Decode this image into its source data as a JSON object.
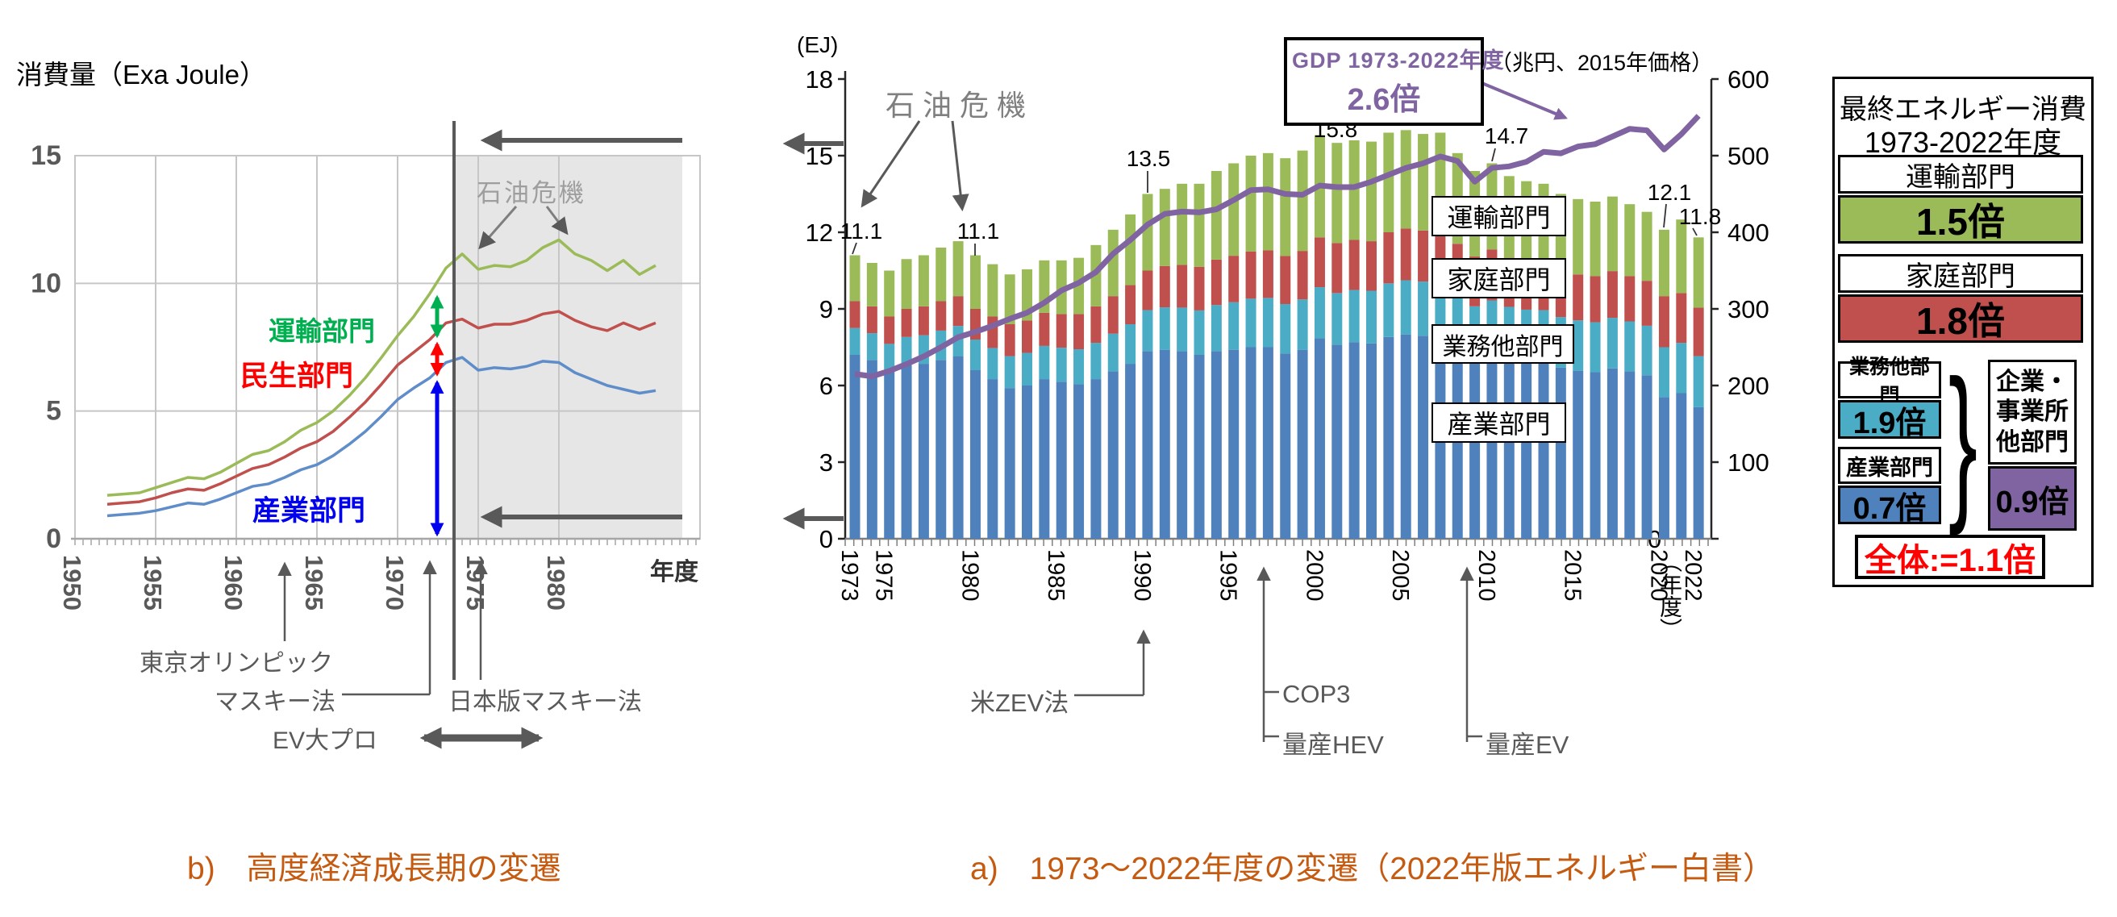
{
  "colors": {
    "industry_bar": "#4F81BD",
    "commercial_bar": "#4BACC6",
    "household_bar": "#C0504D",
    "transport_bar": "#9BBB59",
    "gdp_line": "#8064A2",
    "industry_label": "#0000EE",
    "civil_label": "#FF0000",
    "transport_label": "#00B050",
    "annotation_gray": "#595959",
    "caption_orange": "#C55A11",
    "total_red": "#FF0000"
  },
  "captions": {
    "b": "b)　高度経済成長期の変遷",
    "a": "a)　1973～2022年度の変遷（2022年版エネルギー白書）"
  },
  "chart_data": [
    {
      "type": "line",
      "title": "消費量（Exa Joule）",
      "xlabel": "年度",
      "x_ticks": [
        1950,
        1955,
        1960,
        1965,
        1970,
        1975,
        1980
      ],
      "ylim": [
        0,
        15
      ],
      "y_ticks": [
        0,
        5,
        10,
        15
      ],
      "shaded_region": {
        "from": 1973.5,
        "label": "石油危機"
      },
      "x_start": 1952,
      "series": [
        {
          "name": "産業部門",
          "color": "#5F8DC9",
          "values": [
            0.9,
            0.95,
            1.0,
            1.1,
            1.25,
            1.4,
            1.35,
            1.55,
            1.8,
            2.05,
            2.15,
            2.4,
            2.7,
            2.9,
            3.25,
            3.7,
            4.2,
            4.8,
            5.45,
            5.9,
            6.3,
            6.9,
            7.1,
            6.6,
            6.7,
            6.65,
            6.75,
            6.95,
            6.9,
            6.5,
            6.25,
            6.0,
            5.85,
            5.7,
            5.8
          ]
        },
        {
          "name": "民生部門",
          "color": "#C0504D",
          "values": [
            1.35,
            1.4,
            1.45,
            1.6,
            1.8,
            1.95,
            1.9,
            2.15,
            2.45,
            2.75,
            2.9,
            3.2,
            3.55,
            3.8,
            4.2,
            4.75,
            5.35,
            6.05,
            6.8,
            7.3,
            7.8,
            8.45,
            8.6,
            8.25,
            8.4,
            8.4,
            8.55,
            8.8,
            8.9,
            8.55,
            8.3,
            8.15,
            8.45,
            8.2,
            8.45
          ]
        },
        {
          "name": "運輸部門",
          "color": "#9BBB59",
          "values": [
            1.7,
            1.75,
            1.8,
            2.0,
            2.2,
            2.4,
            2.35,
            2.6,
            2.95,
            3.3,
            3.45,
            3.8,
            4.25,
            4.55,
            5.0,
            5.6,
            6.3,
            7.1,
            7.95,
            8.7,
            9.6,
            10.6,
            11.15,
            10.55,
            10.7,
            10.65,
            10.9,
            11.4,
            11.7,
            11.15,
            10.9,
            10.5,
            10.9,
            10.35,
            10.7
          ]
        }
      ],
      "annotations": {
        "tokyo_olympics": "東京オリンピック",
        "muskie_act": "マスキー法",
        "jp_muskie_act": "日本版マスキー法",
        "ev_project": "EV大プロ"
      }
    },
    {
      "type": "stacked-bar+line",
      "unit_left": "(EJ)",
      "unit_right": "（兆円、2015年価格）",
      "xlabel": "（年度）",
      "x_start": 1973,
      "x_tick_years": [
        1973,
        1975,
        1980,
        1985,
        1990,
        1995,
        2000,
        2005,
        2010,
        2015,
        2020,
        2022
      ],
      "ylim_left": [
        0,
        18
      ],
      "y_ticks_left": [
        0,
        3,
        6,
        9,
        12,
        15,
        18
      ],
      "ylim_right": [
        0,
        600
      ],
      "y_ticks_right": [
        0,
        100,
        200,
        300,
        400,
        500,
        600
      ],
      "oil_crisis_label": "石油危機",
      "sector_boxes": [
        "運輸部門",
        "家庭部門",
        "業務他部門",
        "産業部門"
      ],
      "gdp_box": {
        "line1": "GDP 1973-2022年度",
        "line2": "2.6倍"
      },
      "series": [
        {
          "name": "産業部門",
          "color": "#4F81BD",
          "values": [
            7.2,
            7.0,
            6.55,
            6.8,
            6.85,
            7.0,
            7.15,
            6.6,
            6.25,
            5.9,
            6.0,
            6.25,
            6.15,
            6.05,
            6.25,
            6.55,
            6.85,
            7.35,
            7.4,
            7.35,
            7.2,
            7.35,
            7.4,
            7.5,
            7.5,
            7.25,
            7.4,
            7.85,
            7.6,
            7.7,
            7.65,
            7.9,
            8.0,
            7.95,
            8.05,
            7.5,
            7.05,
            7.25,
            7.05,
            6.95,
            6.95,
            6.7,
            6.58,
            6.52,
            6.67,
            6.55,
            6.4,
            5.55,
            5.7,
            5.15
          ]
        },
        {
          "name": "業務他部門",
          "color": "#4BACC6",
          "values": [
            1.05,
            1.05,
            1.08,
            1.1,
            1.12,
            1.15,
            1.18,
            1.2,
            1.22,
            1.25,
            1.28,
            1.3,
            1.33,
            1.37,
            1.42,
            1.48,
            1.55,
            1.6,
            1.66,
            1.7,
            1.74,
            1.8,
            1.86,
            1.9,
            1.93,
            1.94,
            1.97,
            2.0,
            2.02,
            2.04,
            2.06,
            2.1,
            2.12,
            2.12,
            2.12,
            2.08,
            2.05,
            2.08,
            2.03,
            2.02,
            2.0,
            1.98,
            1.97,
            1.96,
            1.98,
            1.96,
            1.94,
            1.95,
            1.97,
            2.0
          ]
        },
        {
          "name": "家庭部門",
          "color": "#C0504D",
          "values": [
            1.05,
            1.05,
            1.07,
            1.1,
            1.13,
            1.15,
            1.17,
            1.2,
            1.23,
            1.25,
            1.27,
            1.3,
            1.32,
            1.38,
            1.43,
            1.47,
            1.53,
            1.55,
            1.62,
            1.67,
            1.71,
            1.78,
            1.82,
            1.85,
            1.86,
            1.88,
            1.9,
            1.95,
            1.96,
            1.96,
            1.94,
            2.0,
            2.03,
            2.0,
            1.98,
            1.97,
            1.95,
            2.0,
            1.92,
            1.9,
            1.85,
            1.82,
            1.8,
            1.8,
            1.83,
            1.77,
            1.76,
            2.0,
            1.95,
            1.9
          ]
        },
        {
          "name": "運輸部門",
          "color": "#9BBB59",
          "values": [
            1.8,
            1.7,
            1.8,
            1.95,
            2.0,
            2.1,
            2.15,
            2.1,
            2.05,
            1.95,
            2.0,
            2.05,
            2.1,
            2.2,
            2.4,
            2.6,
            2.77,
            3.0,
            3.02,
            3.18,
            3.25,
            3.47,
            3.62,
            3.75,
            3.81,
            3.83,
            3.93,
            4.0,
            3.92,
            3.9,
            3.9,
            3.9,
            3.85,
            3.78,
            3.75,
            3.55,
            3.35,
            3.37,
            3.2,
            3.13,
            3.1,
            3.0,
            2.95,
            2.92,
            2.92,
            2.82,
            2.7,
            2.6,
            2.88,
            2.75
          ]
        }
      ],
      "gdp": {
        "name": "GDP",
        "unit": "兆円",
        "values": [
          215,
          212,
          219,
          228,
          238,
          250,
          263,
          270,
          278,
          287,
          295,
          308,
          324,
          334,
          348,
          372,
          390,
          410,
          424,
          427,
          426,
          430,
          442,
          455,
          456,
          450,
          449,
          461,
          459,
          459,
          466,
          475,
          484,
          490,
          499,
          493,
          466,
          484,
          486,
          492,
          505,
          503,
          512,
          515,
          525,
          535,
          533,
          508,
          528,
          552
        ]
      },
      "value_labels": [
        {
          "year": 1973,
          "text": "11.1"
        },
        {
          "year": 1980,
          "text": "11.1"
        },
        {
          "year": 1990,
          "text": "13.5"
        },
        {
          "year": 2000,
          "text": "15.8"
        },
        {
          "year": 2010,
          "text": "14.7"
        },
        {
          "year": 2020,
          "text": "12.1"
        },
        {
          "year": 2022,
          "text": "11.8"
        }
      ],
      "annotations": {
        "zev": "米ZEV法",
        "cop3": "COP3",
        "hev": "量産HEV",
        "ev": "量産EV"
      }
    }
  ],
  "panel": {
    "title1": "最終エネルギー消費",
    "title2": "1973-2022年度",
    "rows": [
      {
        "label": "運輸部門",
        "value": "1.5倍",
        "color": "#9BBB59"
      },
      {
        "label": "家庭部門",
        "value": "1.8倍",
        "color": "#C0504D"
      }
    ],
    "small": [
      {
        "label": "業務他部門",
        "value": "1.9倍",
        "color": "#4BACC6"
      },
      {
        "label": "産業部門",
        "value": "0.7倍",
        "color": "#4F81BD"
      }
    ],
    "combined": {
      "lines": [
        "企業・",
        "事業所",
        "他部門"
      ],
      "value": "0.9倍",
      "color": "#8064A2"
    },
    "brace": "}",
    "total": "全体:=1.1倍"
  }
}
